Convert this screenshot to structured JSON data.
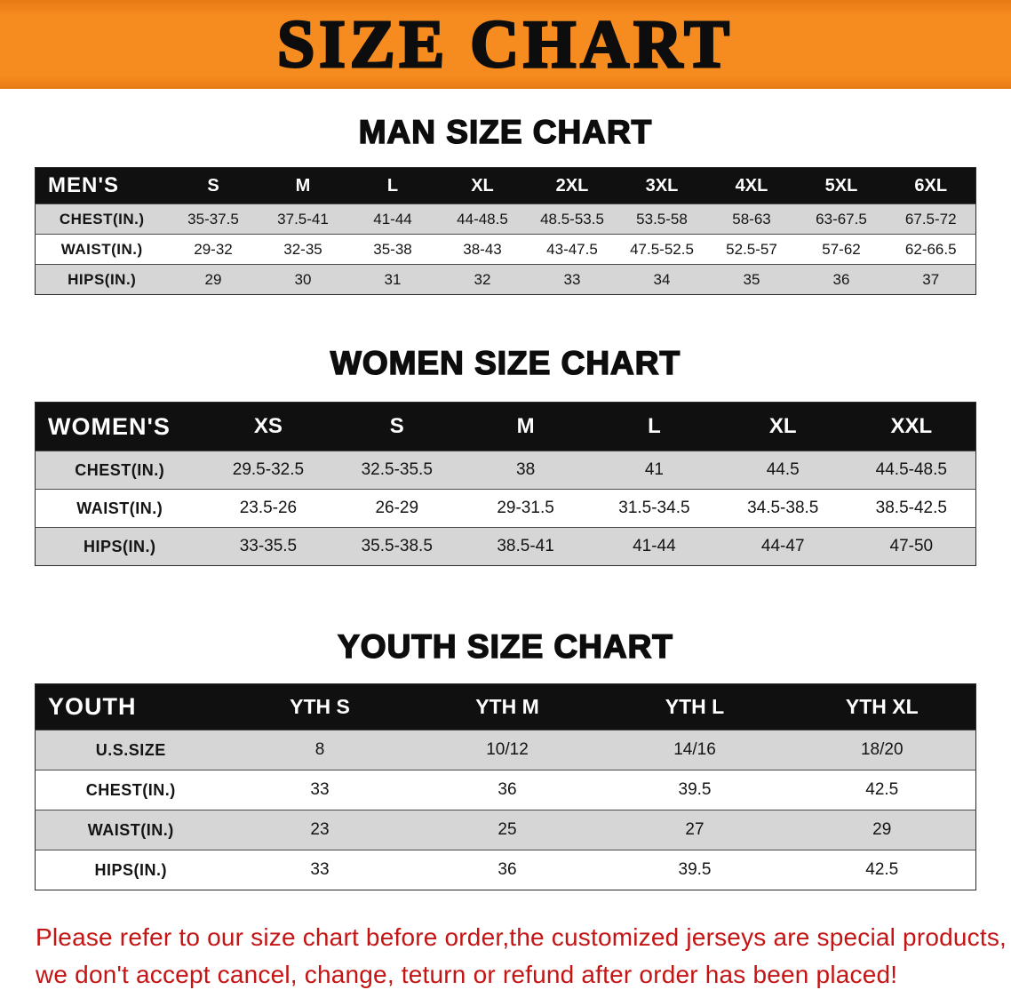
{
  "banner": {
    "title": "SIZE CHART"
  },
  "colors": {
    "banner_orange": "#f68b1f",
    "table_header_black": "#101010",
    "row_gray": "#d6d6d6",
    "notice_red": "#c41414"
  },
  "sections": [
    {
      "heading": "MAN SIZE CHART",
      "table": {
        "header_label": "MEN'S",
        "columns": [
          "S",
          "M",
          "L",
          "XL",
          "2XL",
          "3XL",
          "4XL",
          "5XL",
          "6XL"
        ],
        "rows": [
          {
            "label": "CHEST(IN.)",
            "values": [
              "35-37.5",
              "37.5-41",
              "41-44",
              "44-48.5",
              "48.5-53.5",
              "53.5-58",
              "58-63",
              "63-67.5",
              "67.5-72"
            ]
          },
          {
            "label": "WAIST(IN.)",
            "values": [
              "29-32",
              "32-35",
              "35-38",
              "38-43",
              "43-47.5",
              "47.5-52.5",
              "52.5-57",
              "57-62",
              "62-66.5"
            ]
          },
          {
            "label": "HIPS(IN.)",
            "values": [
              "29",
              "30",
              "31",
              "32",
              "33",
              "34",
              "35",
              "36",
              "37"
            ]
          }
        ]
      }
    },
    {
      "heading": "WOMEN SIZE CHART",
      "table": {
        "header_label": "WOMEN'S",
        "columns": [
          "XS",
          "S",
          "M",
          "L",
          "XL",
          "XXL"
        ],
        "rows": [
          {
            "label": "CHEST(IN.)",
            "values": [
              "29.5-32.5",
              "32.5-35.5",
              "38",
              "41",
              "44.5",
              "44.5-48.5"
            ]
          },
          {
            "label": "WAIST(IN.)",
            "values": [
              "23.5-26",
              "26-29",
              "29-31.5",
              "31.5-34.5",
              "34.5-38.5",
              "38.5-42.5"
            ]
          },
          {
            "label": "HIPS(IN.)",
            "values": [
              "33-35.5",
              "35.5-38.5",
              "38.5-41",
              "41-44",
              "44-47",
              "47-50"
            ]
          }
        ]
      }
    },
    {
      "heading": "YOUTH SIZE CHART",
      "table": {
        "header_label": "YOUTH",
        "columns": [
          "YTH S",
          "YTH M",
          "YTH L",
          "YTH XL"
        ],
        "rows": [
          {
            "label": "U.S.SIZE",
            "values": [
              "8",
              "10/12",
              "14/16",
              "18/20"
            ]
          },
          {
            "label": "CHEST(IN.)",
            "values": [
              "33",
              "36",
              "39.5",
              "42.5"
            ]
          },
          {
            "label": "WAIST(IN.)",
            "values": [
              "23",
              "25",
              "27",
              "29"
            ]
          },
          {
            "label": "HIPS(IN.)",
            "values": [
              "33",
              "36",
              "39.5",
              "42.5"
            ]
          }
        ]
      }
    }
  ],
  "notice": {
    "lines": [
      "Please refer to our size chart before order,the customized jerseys are special products,",
      "we don't accept cancel, change, teturn or refund after order has been placed!"
    ]
  }
}
